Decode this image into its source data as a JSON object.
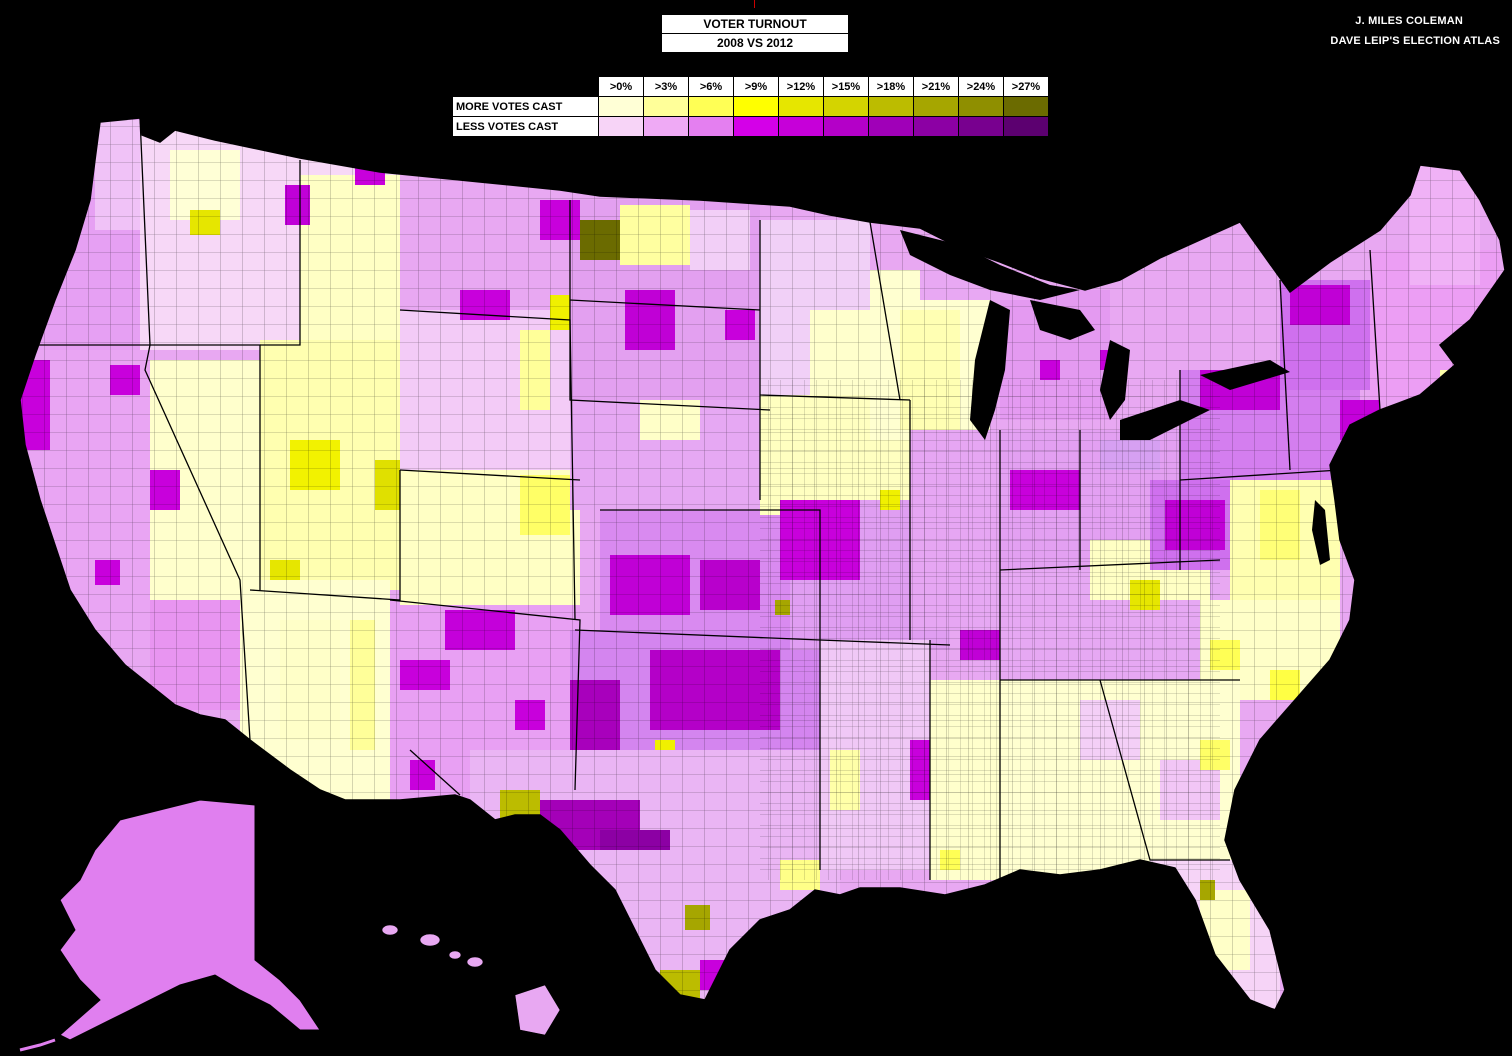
{
  "title": {
    "line1": "VOTER TURNOUT",
    "line2": "2008 VS 2012"
  },
  "credits": {
    "author": "J. MILES COLEMAN",
    "source": "DAVE LEIP'S ELECTION ATLAS"
  },
  "legend": {
    "headers": [
      ">0%",
      ">3%",
      ">6%",
      ">9%",
      ">12%",
      ">15%",
      ">18%",
      ">21%",
      ">24%",
      ">27%"
    ],
    "rows": [
      {
        "label": "MORE VOTES CAST",
        "colors": [
          "#ffffd6",
          "#ffff99",
          "#ffff55",
          "#ffff00",
          "#e6e600",
          "#d4d400",
          "#bcbc00",
          "#a6a600",
          "#8f8f00",
          "#6b6b00"
        ]
      },
      {
        "label": "LESS VOTES CAST",
        "colors": [
          "#f7d4f7",
          "#efaaf5",
          "#e47ff0",
          "#d400e8",
          "#c600d9",
          "#b400c8",
          "#a000b8",
          "#8c00a4",
          "#78008f",
          "#5c0070"
        ]
      }
    ]
  },
  "colors": {
    "background": "#000000",
    "water": "#000000",
    "borders": "#000000"
  }
}
